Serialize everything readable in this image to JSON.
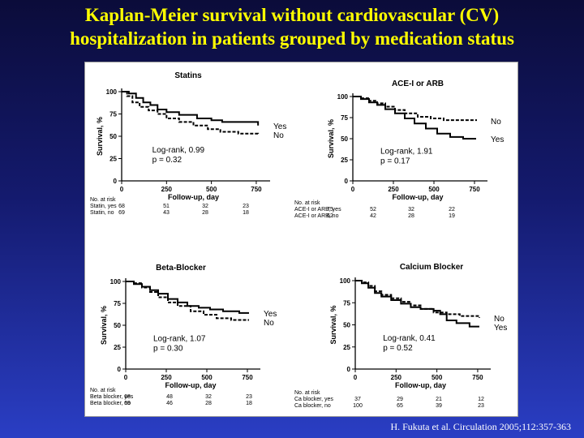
{
  "title": {
    "line1": "Kaplan-Meier  survival  without  cardiovascular  (CV)",
    "line2": "hospitalization in patients grouped by medication status"
  },
  "citation": "H. Fukuta et al. Circulation 2005;112:357-363",
  "colors": {
    "yes": "#000000",
    "no": "#000000",
    "title": "#ffff00",
    "panel": "#ffffff"
  },
  "chart_data": [
    {
      "type": "line",
      "title": "Statins",
      "xlabel": "Follow-up, day",
      "ylabel": "Survival, %",
      "xlim": [
        0,
        800
      ],
      "ylim": [
        0,
        100
      ],
      "xticks": [
        0,
        250,
        500,
        750
      ],
      "yticks": [
        0,
        25,
        50,
        75,
        100
      ],
      "annotation": [
        "Log-rank, 0.99",
        "p = 0.32"
      ],
      "series": [
        {
          "name": "Yes",
          "style": "solid",
          "x": [
            0,
            40,
            80,
            120,
            160,
            200,
            250,
            320,
            420,
            500,
            560,
            620,
            700,
            760
          ],
          "y": [
            100,
            98,
            93,
            88,
            85,
            80,
            77,
            74,
            70,
            68,
            66,
            66,
            66,
            62
          ]
        },
        {
          "name": "No",
          "style": "dashed",
          "x": [
            0,
            30,
            60,
            100,
            150,
            200,
            250,
            320,
            400,
            480,
            550,
            650,
            760
          ],
          "y": [
            100,
            95,
            88,
            83,
            79,
            75,
            70,
            66,
            62,
            58,
            55,
            53,
            52
          ]
        }
      ],
      "at_risk": {
        "header": "No. at risk",
        "rows": [
          {
            "label": "Statin, yes",
            "values": [
              "68",
              "51",
              "32",
              "23"
            ]
          },
          {
            "label": "Statin, no",
            "values": [
              "69",
              "43",
              "28",
              "18"
            ]
          }
        ]
      }
    },
    {
      "type": "line",
      "title": "ACE-I or ARB",
      "xlabel": "Follow-up, day",
      "ylabel": "Survival, %",
      "xlim": [
        0,
        800
      ],
      "ylim": [
        0,
        100
      ],
      "xticks": [
        0,
        250,
        500,
        750
      ],
      "yticks": [
        0,
        25,
        50,
        75,
        100
      ],
      "annotation": [
        "Log-rank, 1.91",
        "p = 0.17"
      ],
      "series": [
        {
          "name": "Yes",
          "style": "solid",
          "x": [
            0,
            50,
            100,
            150,
            200,
            260,
            320,
            380,
            450,
            520,
            600,
            680,
            760
          ],
          "y": [
            100,
            97,
            93,
            90,
            85,
            80,
            74,
            68,
            62,
            56,
            52,
            50,
            50
          ]
        },
        {
          "name": "No",
          "style": "dashed",
          "x": [
            0,
            50,
            100,
            150,
            200,
            260,
            320,
            400,
            480,
            560,
            650,
            760
          ],
          "y": [
            100,
            98,
            95,
            92,
            88,
            84,
            80,
            76,
            74,
            72,
            72,
            71
          ]
        }
      ],
      "at_risk": {
        "header": "No. at risk",
        "rows": [
          {
            "label": "ACE-I or ARB, yes",
            "values": [
              "75",
              "52",
              "32",
              "22"
            ]
          },
          {
            "label": "ACE-I or ARB, no",
            "values": [
              "62",
              "42",
              "28",
              "19"
            ]
          }
        ]
      }
    },
    {
      "type": "line",
      "title": "Beta-Blocker",
      "xlabel": "Follow-up, day",
      "ylabel": "Survival, %",
      "xlim": [
        0,
        800
      ],
      "ylim": [
        0,
        100
      ],
      "xticks": [
        0,
        250,
        500,
        750
      ],
      "yticks": [
        0,
        25,
        50,
        75,
        100
      ],
      "annotation": [
        "Log-rank, 1.07",
        "p = 0.30"
      ],
      "series": [
        {
          "name": "Yes",
          "style": "solid",
          "x": [
            0,
            50,
            100,
            150,
            200,
            260,
            320,
            380,
            450,
            520,
            600,
            700,
            760
          ],
          "y": [
            100,
            97,
            94,
            90,
            86,
            80,
            76,
            72,
            70,
            68,
            66,
            64,
            64
          ]
        },
        {
          "name": "No",
          "style": "dashed",
          "x": [
            0,
            50,
            100,
            150,
            200,
            260,
            320,
            400,
            480,
            560,
            650,
            760
          ],
          "y": [
            100,
            98,
            93,
            88,
            82,
            76,
            72,
            66,
            62,
            58,
            56,
            56
          ]
        }
      ],
      "at_risk": {
        "header": "No. at risk",
        "rows": [
          {
            "label": "Beta blocker, yes",
            "values": [
              "68",
              "48",
              "32",
              "23"
            ]
          },
          {
            "label": "Beta blocker, no",
            "values": [
              "69",
              "46",
              "28",
              "18"
            ]
          }
        ]
      }
    },
    {
      "type": "line",
      "title": "Calcium Blocker",
      "xlabel": "Follow-up, day",
      "ylabel": "Survival, %",
      "xlim": [
        0,
        800
      ],
      "ylim": [
        0,
        100
      ],
      "xticks": [
        0,
        250,
        500,
        750
      ],
      "yticks": [
        0,
        25,
        50,
        75,
        100
      ],
      "annotation": [
        "Log-rank, 0.41",
        "p = 0.52"
      ],
      "series": [
        {
          "name": "Yes",
          "style": "solid",
          "x": [
            0,
            40,
            80,
            120,
            160,
            220,
            280,
            340,
            400,
            480,
            520,
            560,
            620,
            700,
            760
          ],
          "y": [
            100,
            97,
            92,
            86,
            82,
            78,
            74,
            70,
            68,
            66,
            62,
            55,
            52,
            48,
            48
          ]
        },
        {
          "name": "No",
          "style": "dashed",
          "x": [
            0,
            40,
            80,
            120,
            160,
            220,
            280,
            340,
            400,
            480,
            560,
            640,
            760
          ],
          "y": [
            100,
            98,
            94,
            88,
            84,
            80,
            76,
            72,
            68,
            64,
            62,
            60,
            58
          ]
        }
      ],
      "at_risk": {
        "header": "No. at risk",
        "rows": [
          {
            "label": "Ca blocker, yes",
            "values": [
              "37",
              "29",
              "21",
              "12"
            ]
          },
          {
            "label": "Ca blocker, no",
            "values": [
              "100",
              "65",
              "39",
              "23"
            ]
          }
        ]
      }
    }
  ]
}
